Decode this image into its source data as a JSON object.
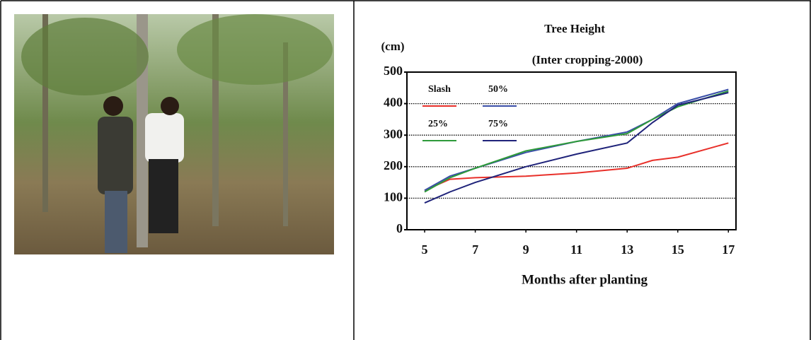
{
  "chart_data": {
    "type": "line",
    "title": "Tree Height",
    "subtitle": "(Inter cropping-2000)",
    "y_label": "(cm)",
    "x_label": "Months after planting",
    "x": [
      5,
      6,
      7,
      9,
      11,
      13,
      14,
      15,
      17
    ],
    "series": [
      {
        "name": "Slash",
        "color": "#e8302a",
        "values": [
          125,
          160,
          165,
          170,
          180,
          195,
          220,
          230,
          275
        ]
      },
      {
        "name": "50%",
        "color": "#3a4fa8",
        "values": [
          125,
          170,
          195,
          245,
          280,
          310,
          350,
          400,
          445
        ]
      },
      {
        "name": "25%",
        "color": "#2e9a3a",
        "values": [
          120,
          165,
          195,
          250,
          280,
          305,
          350,
          390,
          440
        ]
      },
      {
        "name": "75%",
        "color": "#1f237a",
        "values": [
          85,
          120,
          150,
          200,
          240,
          275,
          340,
          395,
          435
        ]
      }
    ],
    "xlim": [
      4.3,
      17.3
    ],
    "xticks": [
      5,
      7,
      9,
      11,
      13,
      15,
      17
    ],
    "ylim": [
      0,
      500
    ],
    "yticks": [
      0,
      100,
      200,
      300,
      400,
      500
    ],
    "grid": true
  }
}
